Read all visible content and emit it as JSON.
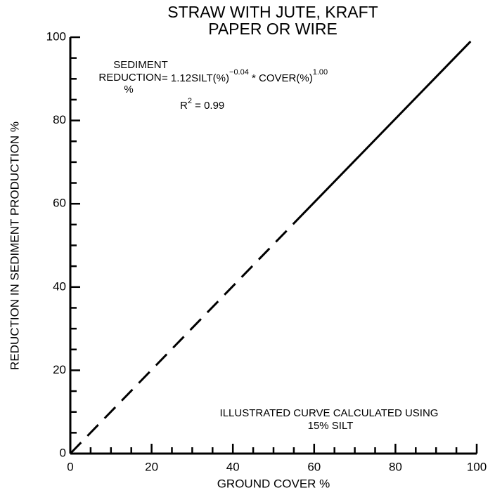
{
  "chart_data": {
    "type": "line",
    "title": [
      "STRAW WITH JUTE, KRAFT",
      "PAPER OR WIRE"
    ],
    "xlabel": "GROUND COVER %",
    "ylabel": "REDUCTION IN SEDIMENT PRODUCTION %",
    "annotations": {
      "equation_lhs": [
        "SEDIMENT",
        "REDUCTION",
        "%"
      ],
      "equation_rhs": [
        "= 1.12SILT(%)",
        "−0.04",
        " * COVER(%)",
        "1.00"
      ],
      "r_squared": [
        "R",
        "2",
        " = 0.99"
      ],
      "note": [
        "ILLUSTRATED CURVE CALCULATED USING",
        "15% SILT"
      ]
    },
    "series": [
      {
        "color": "#000000",
        "dash": true,
        "x": [
          0,
          57
        ],
        "values": [
          0,
          57.3
        ]
      },
      {
        "color": "#000000",
        "dash": false,
        "x": [
          57,
          98.5
        ],
        "values": [
          57.3,
          99
        ]
      }
    ],
    "xlim": [
      0,
      100
    ],
    "xticks": [
      0,
      20,
      40,
      60,
      80,
      100
    ],
    "xminorticks": [
      5,
      10,
      15,
      25,
      30,
      35,
      45,
      50,
      55,
      65,
      70,
      75,
      85,
      90,
      95
    ],
    "ylim": [
      0,
      100
    ],
    "yticks": [
      0,
      20,
      40,
      60,
      80,
      100
    ],
    "yminorticks": [
      5,
      10,
      15,
      25,
      30,
      35,
      45,
      50,
      55,
      65,
      70,
      75,
      85,
      90,
      95
    ],
    "grid": false
  }
}
